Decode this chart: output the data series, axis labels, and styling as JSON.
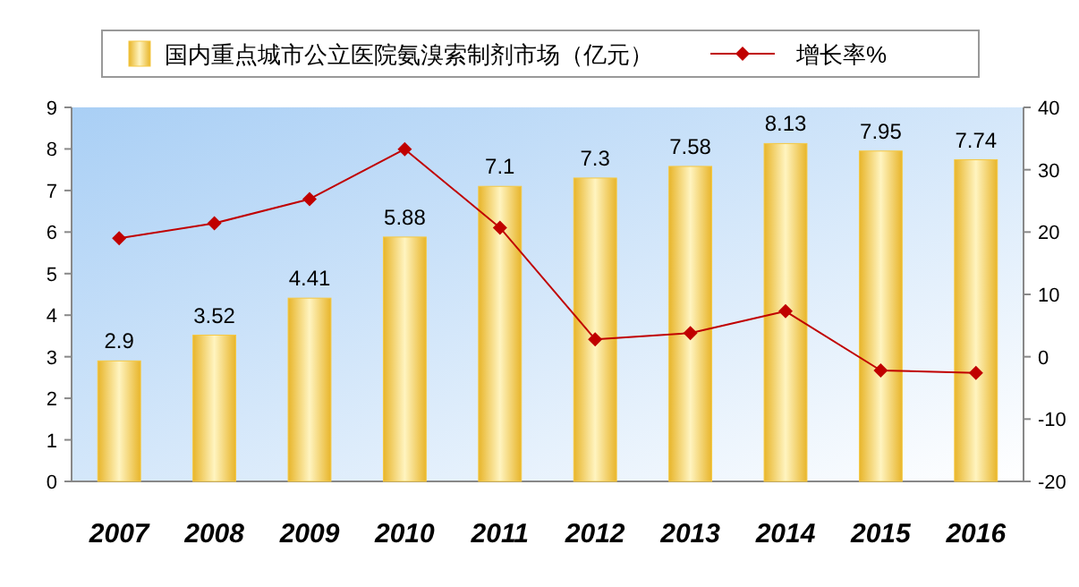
{
  "chart_data": {
    "type": "bar",
    "categories": [
      "2007",
      "2008",
      "2009",
      "2010",
      "2011",
      "2012",
      "2013",
      "2014",
      "2015",
      "2016"
    ],
    "series": [
      {
        "name": "国内重点城市公立医院氨溴索制剂市场（亿元）",
        "color": "#f5c842",
        "values": [
          2.9,
          3.52,
          4.41,
          5.88,
          7.1,
          7.3,
          7.58,
          8.13,
          7.95,
          7.74
        ],
        "value_labels": [
          "2.9",
          "3.52",
          "4.41",
          "5.88",
          "7.1",
          "7.3",
          "7.58",
          "8.13",
          "7.95",
          "7.74"
        ]
      },
      {
        "name": "增长率%",
        "type": "line",
        "axis": "y2",
        "color": "#c00000",
        "marker": "diamond",
        "values": [
          19,
          21.4,
          25.3,
          33.3,
          20.7,
          2.8,
          3.8,
          7.3,
          -2.2,
          -2.6
        ]
      }
    ],
    "ylim": [
      0,
      9
    ],
    "yticks": [
      0,
      1,
      2,
      3,
      4,
      5,
      6,
      7,
      8,
      9
    ],
    "y2lim": [
      -20,
      40
    ],
    "y2ticks": [
      -20,
      -10,
      0,
      10,
      20,
      30,
      40
    ],
    "legend": "top",
    "grid": false
  }
}
